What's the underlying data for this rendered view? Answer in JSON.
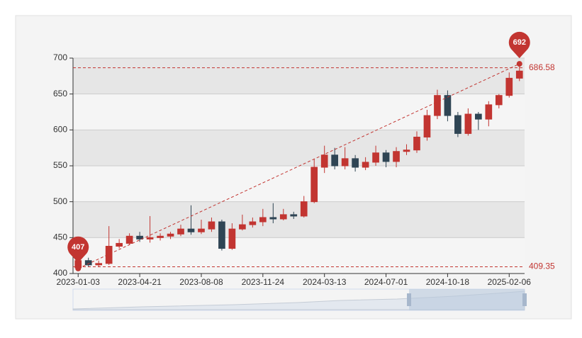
{
  "chart_data": {
    "type": "candlestick",
    "categories": [
      "2023-01-03",
      null,
      null,
      null,
      null,
      null,
      "2023-04-21",
      null,
      null,
      null,
      null,
      null,
      "2023-08-08",
      null,
      null,
      null,
      null,
      null,
      "2023-11-24",
      null,
      null,
      null,
      null,
      null,
      "2024-03-13",
      null,
      null,
      null,
      null,
      null,
      "2024-07-01",
      null,
      null,
      null,
      null,
      null,
      "2024-10-18",
      null,
      null,
      null,
      null,
      null,
      "2025-02-06",
      null
    ],
    "open": [
      408,
      418,
      412,
      414,
      438,
      442,
      452,
      448,
      450,
      452,
      455,
      462,
      458,
      462,
      472,
      435,
      462,
      468,
      472,
      478,
      476,
      482,
      480,
      500,
      548,
      565,
      550,
      560,
      548,
      555,
      568,
      556,
      570,
      572,
      590,
      620,
      648,
      620,
      595,
      622,
      615,
      635,
      648,
      672
    ],
    "close": [
      418,
      412,
      414,
      438,
      442,
      452,
      448,
      450,
      452,
      455,
      462,
      458,
      462,
      472,
      435,
      462,
      468,
      472,
      478,
      476,
      482,
      480,
      500,
      548,
      565,
      550,
      560,
      548,
      555,
      568,
      556,
      570,
      572,
      590,
      620,
      648,
      620,
      595,
      622,
      615,
      635,
      648,
      672,
      682
    ],
    "low": [
      407,
      409,
      409,
      412,
      435,
      440,
      444,
      443,
      446,
      448,
      452,
      454,
      455,
      458,
      432,
      433,
      460,
      464,
      466,
      470,
      474,
      476,
      478,
      498,
      540,
      545,
      545,
      542,
      544,
      550,
      548,
      548,
      565,
      568,
      585,
      615,
      612,
      590,
      592,
      600,
      605,
      630,
      645,
      668
    ],
    "high": [
      425,
      422,
      418,
      466,
      448,
      456,
      458,
      480,
      456,
      458,
      468,
      495,
      475,
      478,
      475,
      470,
      482,
      478,
      490,
      498,
      490,
      486,
      508,
      560,
      578,
      575,
      576,
      565,
      562,
      578,
      572,
      576,
      580,
      598,
      628,
      656,
      655,
      625,
      630,
      625,
      640,
      650,
      680,
      692
    ],
    "up_color": "#c23531",
    "down_color": "#2f4554",
    "ylim": [
      400,
      700
    ],
    "yticks": [
      400,
      450,
      500,
      550,
      600,
      650,
      700
    ],
    "mark_points": [
      {
        "label": "692",
        "value": 692
      },
      {
        "label": "407",
        "value": 407
      }
    ],
    "mark_lines": [
      686.58,
      409.35
    ]
  }
}
